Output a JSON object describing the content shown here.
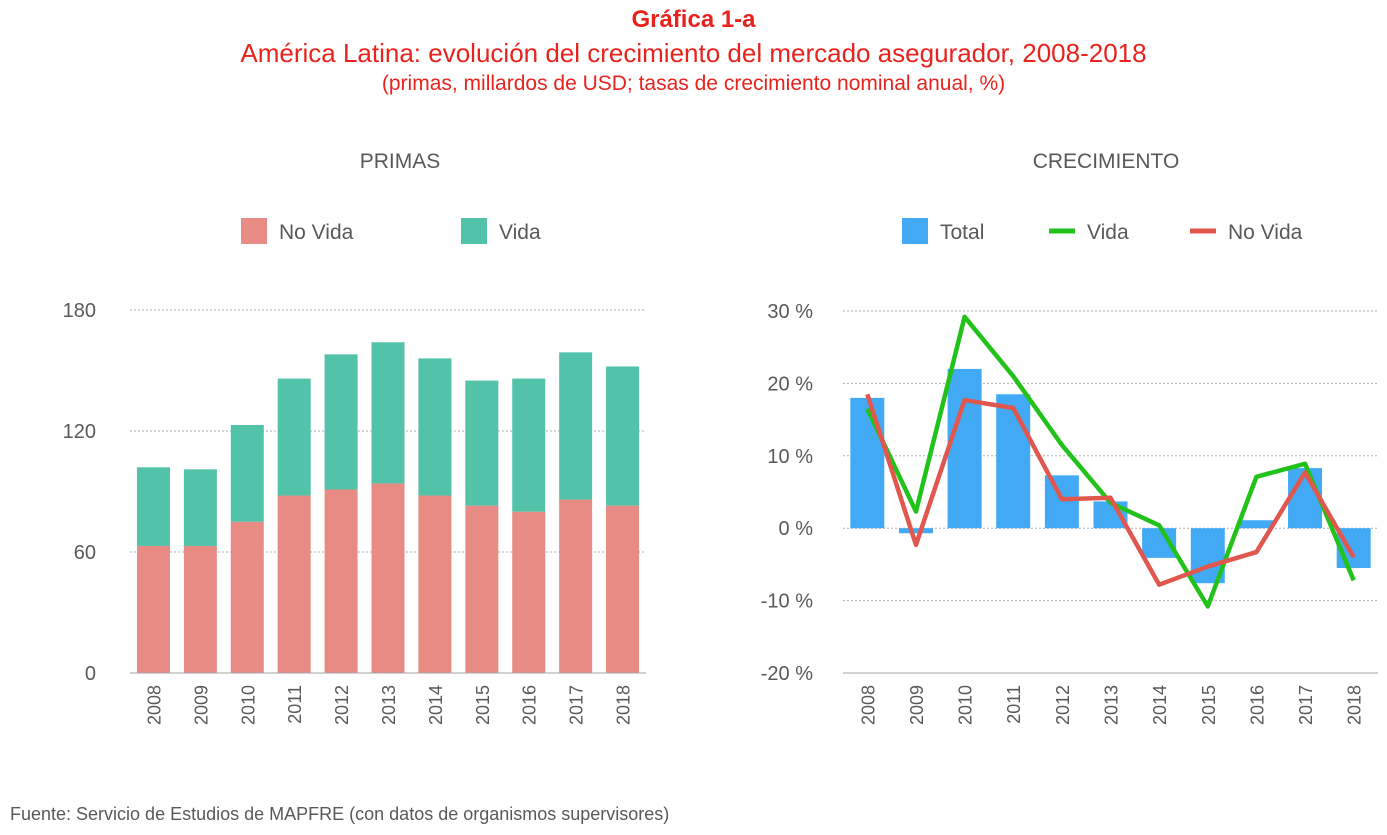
{
  "header": {
    "figure_number": "Gráfica  1-a",
    "title": "América Latina: evolución del crecimiento del mercado asegurador, 2008-2018",
    "subtitle": "(primas, millardos de USD; tasas de crecimiento nominal anual, %)"
  },
  "source": "Fuente: Servicio de Estudios de MAPFRE (con datos de organismos supervisores)",
  "chart_data": [
    {
      "type": "bar",
      "stacked": true,
      "title": "PRIMAS",
      "categories": [
        "2008",
        "2009",
        "2010",
        "2011",
        "2012",
        "2013",
        "2014",
        "2015",
        "2016",
        "2017",
        "2018"
      ],
      "series": [
        {
          "name": "No Vida",
          "color": "#e88b84",
          "values": [
            63,
            63,
            75,
            88,
            91,
            94,
            88,
            83,
            80,
            86,
            83
          ]
        },
        {
          "name": "Vida",
          "color": "#52c3a9",
          "values": [
            39,
            38,
            48,
            58,
            67,
            70,
            68,
            62,
            66,
            73,
            69
          ]
        }
      ],
      "ylim": [
        0,
        180
      ],
      "yticks": [
        0,
        60,
        120,
        180
      ],
      "ytick_labels": [
        "0",
        "60",
        "120",
        "180"
      ],
      "grid": true,
      "legend_position": "top"
    },
    {
      "type": "bar+line",
      "title": "CRECIMIENTO",
      "categories": [
        "2008",
        "2009",
        "2010",
        "2011",
        "2012",
        "2013",
        "2014",
        "2015",
        "2016",
        "2017",
        "2018"
      ],
      "series": [
        {
          "name": "Total",
          "type": "bar",
          "color": "#42aaf5",
          "values": [
            18,
            -0.7,
            22,
            18.5,
            7.3,
            3.7,
            -4.1,
            -7.6,
            1.1,
            8.3,
            -5.5
          ]
        },
        {
          "name": "Vida",
          "type": "line",
          "color": "#22c21a",
          "values": [
            16.5,
            2.3,
            29.2,
            21,
            11.5,
            3.5,
            0.4,
            -10.8,
            7.1,
            8.9,
            -7.2
          ]
        },
        {
          "name": "No Vida",
          "type": "line",
          "color": "#e0574e",
          "values": [
            18.5,
            -2.3,
            17.7,
            16.6,
            4,
            4.2,
            -7.8,
            -5.3,
            -3.3,
            7.7,
            -4
          ]
        }
      ],
      "ylim": [
        -20,
        30
      ],
      "yticks": [
        -20,
        -10,
        0,
        10,
        20,
        30
      ],
      "ytick_labels": [
        "-20 %",
        "-10 %",
        "0 %",
        "10 %",
        "20 %",
        "30 %"
      ],
      "grid": true,
      "legend_position": "top"
    }
  ]
}
